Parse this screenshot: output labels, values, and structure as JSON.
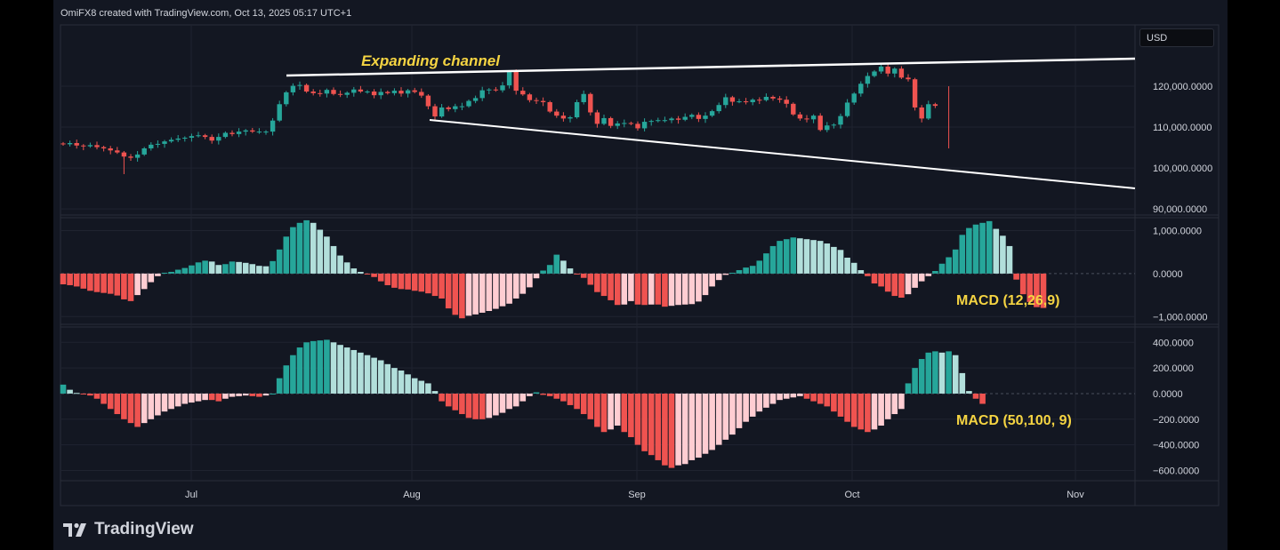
{
  "header": {
    "text": "OmiFX8 created with TradingView.com, Oct 13, 2025 05:17 UTC+1"
  },
  "currency": "USD",
  "brand": {
    "name": "TradingView"
  },
  "colors": {
    "up": "#26a69a",
    "down": "#ef5350",
    "up_light": "#b2dfdb",
    "down_light": "#ffcdd2",
    "annotation": "#f5d442",
    "line": "#ffffff",
    "bg": "#131722",
    "text": "#d1d4dc"
  },
  "chart_data": [
    {
      "type": "candlestick",
      "name": "price",
      "annotation": "Expanding channel",
      "x_ticks": [
        "Jul",
        "Aug",
        "Sep",
        "Oct",
        "Nov"
      ],
      "y_ticks": [
        "120,000.0000",
        "110,000.0000",
        "100,000.0000",
        "90,000.0000"
      ],
      "y_tick_values": [
        120000,
        110000,
        100000,
        90000
      ],
      "ylim": [
        88500,
        135000
      ],
      "close_start": 106000,
      "close": [
        105800,
        106100,
        105500,
        105300,
        105600,
        105100,
        104800,
        104300,
        103800,
        102800,
        102500,
        103300,
        104800,
        105700,
        105900,
        106500,
        106900,
        107200,
        107400,
        107800,
        108000,
        107600,
        106700,
        107600,
        108600,
        108300,
        108900,
        109200,
        108900,
        108900,
        108900,
        111600,
        115600,
        118500,
        120100,
        120300,
        118700,
        118300,
        118200,
        119100,
        118100,
        117900,
        118400,
        119200,
        118700,
        118700,
        117800,
        118600,
        118300,
        118900,
        118200,
        119000,
        118600,
        117700,
        115100,
        112600,
        114800,
        114400,
        115100,
        115100,
        116400,
        117100,
        119000,
        119200,
        119000,
        120200,
        123500,
        118900,
        118000,
        116600,
        116400,
        116100,
        113800,
        112800,
        112100,
        112400,
        116100,
        118100,
        113600,
        110800,
        112200,
        110300,
        110900,
        111000,
        110800,
        109700,
        111300,
        111500,
        111700,
        111700,
        112100,
        111800,
        112500,
        113000,
        112000,
        112800,
        113900,
        115400,
        117300,
        116200,
        116300,
        116100,
        116700,
        116600,
        117400,
        117000,
        116700,
        115700,
        113100,
        112100,
        111900,
        112800,
        109300,
        110400,
        110600,
        112700,
        116000,
        118200,
        120600,
        122500,
        123600,
        124800,
        123100,
        124300,
        122100,
        121700,
        114800,
        112100,
        115600,
        115200
      ]
    },
    {
      "type": "histogram",
      "name": "MACD (12,26,9)",
      "y_ticks": [
        "1,000.0000",
        "0.0000",
        "−1,000.0000"
      ],
      "y_tick_values": [
        1000,
        0,
        -1000
      ],
      "ylim": [
        -1180,
        1300
      ],
      "values": [
        -250,
        -270,
        -300,
        -350,
        -400,
        -430,
        -450,
        -470,
        -510,
        -600,
        -640,
        -500,
        -360,
        -200,
        -60,
        20,
        40,
        90,
        130,
        190,
        260,
        300,
        280,
        200,
        220,
        280,
        270,
        250,
        220,
        180,
        170,
        290,
        560,
        860,
        1080,
        1180,
        1240,
        1180,
        1020,
        860,
        640,
        420,
        260,
        120,
        40,
        -20,
        -80,
        -180,
        -270,
        -330,
        -360,
        -370,
        -400,
        -420,
        -460,
        -520,
        -580,
        -810,
        -960,
        -1040,
        -980,
        -950,
        -910,
        -870,
        -820,
        -760,
        -700,
        -580,
        -470,
        -320,
        -110,
        70,
        200,
        440,
        300,
        120,
        -20,
        -100,
        -260,
        -430,
        -520,
        -620,
        -730,
        -720,
        -640,
        -720,
        -730,
        -720,
        -720,
        -770,
        -750,
        -730,
        -720,
        -710,
        -650,
        -500,
        -300,
        -150,
        -30,
        20,
        80,
        140,
        180,
        300,
        470,
        640,
        760,
        800,
        840,
        820,
        800,
        780,
        760,
        700,
        620,
        550,
        370,
        250,
        80,
        -60,
        -230,
        -300,
        -420,
        -520,
        -560,
        -480,
        -330,
        -180,
        -60,
        60,
        230,
        380,
        560,
        900,
        1060,
        1140,
        1180,
        1220,
        1040,
        880,
        640,
        -140,
        -480,
        -660,
        -780,
        -800
      ]
    },
    {
      "type": "histogram",
      "name": "MACD (50,100, 9)",
      "y_ticks": [
        "400.0000",
        "200.0000",
        "0.0000",
        "−200.0000",
        "−400.0000",
        "−600.0000"
      ],
      "y_tick_values": [
        400,
        200,
        0,
        -200,
        -400,
        -600
      ],
      "ylim": [
        -680,
        520
      ],
      "values": [
        70,
        30,
        5,
        -5,
        -15,
        -40,
        -80,
        -120,
        -160,
        -200,
        -230,
        -260,
        -230,
        -200,
        -170,
        -140,
        -120,
        -100,
        -80,
        -70,
        -60,
        -50,
        -50,
        -60,
        -40,
        -25,
        -20,
        -15,
        -20,
        -25,
        -15,
        0,
        120,
        220,
        300,
        360,
        400,
        410,
        415,
        420,
        400,
        380,
        360,
        340,
        320,
        300,
        280,
        260,
        230,
        200,
        180,
        150,
        120,
        100,
        80,
        20,
        -60,
        -100,
        -130,
        -160,
        -190,
        -200,
        -200,
        -190,
        -170,
        -150,
        -120,
        -100,
        -60,
        -20,
        10,
        -10,
        -20,
        -40,
        -60,
        -90,
        -120,
        -160,
        -200,
        -260,
        -300,
        -280,
        -250,
        -300,
        -340,
        -400,
        -450,
        -480,
        -520,
        -560,
        -580,
        -560,
        -550,
        -520,
        -500,
        -470,
        -440,
        -400,
        -360,
        -320,
        -270,
        -220,
        -180,
        -140,
        -110,
        -80,
        -50,
        -40,
        -30,
        -20,
        -40,
        -60,
        -80,
        -100,
        -140,
        -180,
        -220,
        -260,
        -280,
        -300,
        -280,
        -250,
        -200,
        -160,
        -120,
        80,
        200,
        270,
        320,
        330,
        320,
        330,
        300,
        160,
        20,
        -40,
        -80
      ]
    }
  ]
}
